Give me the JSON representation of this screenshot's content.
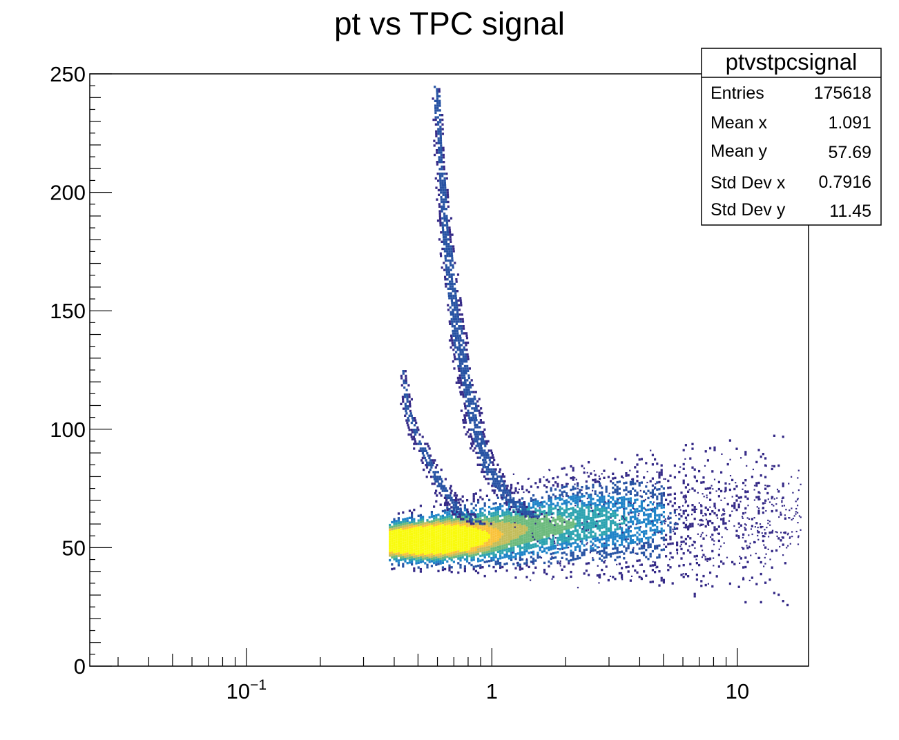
{
  "chart_data": {
    "type": "heatmap",
    "title": "pt vs TPC signal",
    "xlabel": "",
    "ylabel": "",
    "x_scale": "log",
    "xlim": [
      0.023,
      19.5
    ],
    "ylim": [
      0,
      250
    ],
    "x_tick_labels": [
      {
        "value": 0.1,
        "base": "10",
        "exp": "−1"
      },
      {
        "value": 1,
        "base": "1",
        "exp": ""
      },
      {
        "value": 10,
        "base": "10",
        "exp": ""
      }
    ],
    "y_ticks": [
      0,
      50,
      100,
      150,
      200,
      250
    ],
    "grid": false,
    "colormap": [
      "#352a87",
      "#2753a3",
      "#1f83c8",
      "#2ca3b0",
      "#6cba7d",
      "#c3bd5b",
      "#f9c23a",
      "#f9fb0e"
    ],
    "bands": [
      {
        "name": "main-band",
        "points": [
          [
            0.38,
            53
          ],
          [
            0.5,
            54
          ],
          [
            0.7,
            56
          ],
          [
            1.0,
            57
          ],
          [
            1.5,
            59
          ],
          [
            2.2,
            61
          ],
          [
            3.5,
            62
          ],
          [
            5,
            62
          ]
        ],
        "width": 7.5,
        "density": 1.0
      },
      {
        "name": "upper-band",
        "points": [
          [
            0.59,
            245
          ],
          [
            0.61,
            215
          ],
          [
            0.64,
            185
          ],
          [
            0.68,
            160
          ],
          [
            0.72,
            140
          ],
          [
            0.78,
            120
          ],
          [
            0.85,
            100
          ],
          [
            0.95,
            85
          ],
          [
            1.1,
            74
          ],
          [
            1.3,
            67
          ],
          [
            1.5,
            63
          ]
        ],
        "width": 3.5,
        "density": 0.55
      },
      {
        "name": "middle-band",
        "points": [
          [
            0.43,
            125
          ],
          [
            0.45,
            108
          ],
          [
            0.5,
            95
          ],
          [
            0.56,
            85
          ],
          [
            0.62,
            76
          ],
          [
            0.7,
            68
          ],
          [
            0.8,
            63
          ],
          [
            0.9,
            60
          ]
        ],
        "width": 3.5,
        "density": 0.45
      }
    ],
    "peak": {
      "x": 0.57,
      "y": 53
    }
  },
  "stats_box": {
    "title": "ptvstpcsignal",
    "rows": [
      {
        "label": "Entries",
        "value": "175618"
      },
      {
        "label": "Mean x",
        "value": "1.091"
      },
      {
        "label": "Mean y",
        "value": "57.69"
      },
      {
        "label": "Std Dev x",
        "value": "0.7916"
      },
      {
        "label": "Std Dev y",
        "value": "11.45"
      }
    ]
  }
}
